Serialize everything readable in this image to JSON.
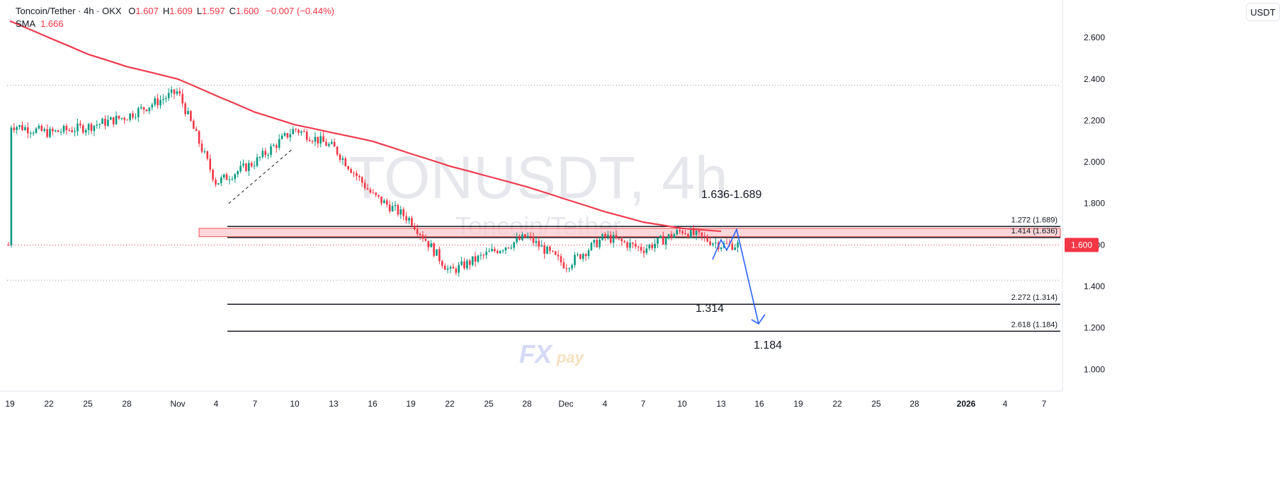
{
  "legend": {
    "symbol": "Toncoin/Tether · 4h · OKX",
    "ohlc": [
      {
        "k": "O",
        "v": "1.607"
      },
      {
        "k": "H",
        "v": "1.609"
      },
      {
        "k": "L",
        "v": "1.597"
      },
      {
        "k": "C",
        "v": "1.600"
      }
    ],
    "change": "−0.007 (−0.44%)",
    "sma_label": "SMA",
    "sma_value": "1.666"
  },
  "currency_button": "USDT",
  "watermark": {
    "title": "TONUSDT, 4h",
    "subtitle": "Toncoin/Tether"
  },
  "logo": {
    "text_fx": "FX",
    "text_pay": "pay"
  },
  "colors": {
    "sma": "#ef3b4e",
    "up": "#089981",
    "down": "#f23645",
    "arrow": "#2962ff",
    "zone": "#f8c9cd",
    "price_label_bg": "#f23645",
    "logo": "#b9bff0"
  },
  "chart_data": {
    "type": "candlestick",
    "y_axis": {
      "min": 0.95,
      "max": 2.72,
      "ticks": [
        "2.600",
        "2.400",
        "2.200",
        "2.000",
        "1.800",
        "1.600",
        "1.400",
        "1.200",
        "1.000"
      ]
    },
    "x_axis": {
      "ticks": [
        "19",
        "22",
        "25",
        "28",
        "Nov",
        "4",
        "7",
        "10",
        "13",
        "16",
        "19",
        "22",
        "25",
        "28",
        "Dec",
        "4",
        "7",
        "10",
        "13",
        "16",
        "19",
        "22",
        "25",
        "28",
        "2026",
        "4",
        "7"
      ]
    },
    "current_price": "1.600",
    "horizontal_levels": [
      {
        "value": 1.689,
        "label": "1.272 (1.689)"
      },
      {
        "value": 1.636,
        "label": "1.414 (1.636)"
      },
      {
        "value": 1.314,
        "label": "2.272 (1.314)"
      },
      {
        "value": 1.184,
        "label": "2.618 (1.184)"
      }
    ],
    "dotted_levels": [
      2.37,
      1.43
    ],
    "zone": {
      "from": 1.64,
      "to": 1.68
    },
    "annotations": [
      "1.636-1.689",
      "1.314",
      "1.184"
    ],
    "sma_path": [
      [
        "19",
        2.68
      ],
      [
        "22",
        2.6
      ],
      [
        "25",
        2.52
      ],
      [
        "28",
        2.46
      ],
      [
        "Nov",
        2.4
      ],
      [
        "4",
        2.32
      ],
      [
        "7",
        2.24
      ],
      [
        "10",
        2.18
      ],
      [
        "13",
        2.14
      ],
      [
        "16",
        2.1
      ],
      [
        "19",
        2.04
      ],
      [
        "22",
        1.98
      ],
      [
        "25",
        1.93
      ],
      [
        "28",
        1.88
      ],
      [
        "Dec",
        1.82
      ],
      [
        "4",
        1.76
      ],
      [
        "7",
        1.71
      ],
      [
        "10",
        1.68
      ],
      [
        "13",
        1.666
      ]
    ],
    "price_path": [
      [
        "19",
        2.18
      ],
      [
        "22",
        2.14
      ],
      [
        "25",
        2.17
      ],
      [
        "28",
        2.22
      ],
      [
        "Nov",
        2.34
      ],
      [
        "4",
        1.9
      ],
      [
        "7",
        2.0
      ],
      [
        "10",
        2.16
      ],
      [
        "13",
        2.07
      ],
      [
        "16",
        1.84
      ],
      [
        "19",
        1.72
      ],
      [
        "22",
        1.47
      ],
      [
        "25",
        1.56
      ],
      [
        "28",
        1.64
      ],
      [
        "Dec",
        1.5
      ],
      [
        "4",
        1.64
      ],
      [
        "7",
        1.58
      ],
      [
        "10",
        1.67
      ],
      [
        "13",
        1.6
      ]
    ],
    "projection": [
      [
        "13",
        1.53
      ],
      [
        "13",
        1.62
      ],
      [
        "13",
        1.58
      ],
      [
        "16",
        1.67
      ],
      [
        "16",
        1.22
      ]
    ]
  }
}
